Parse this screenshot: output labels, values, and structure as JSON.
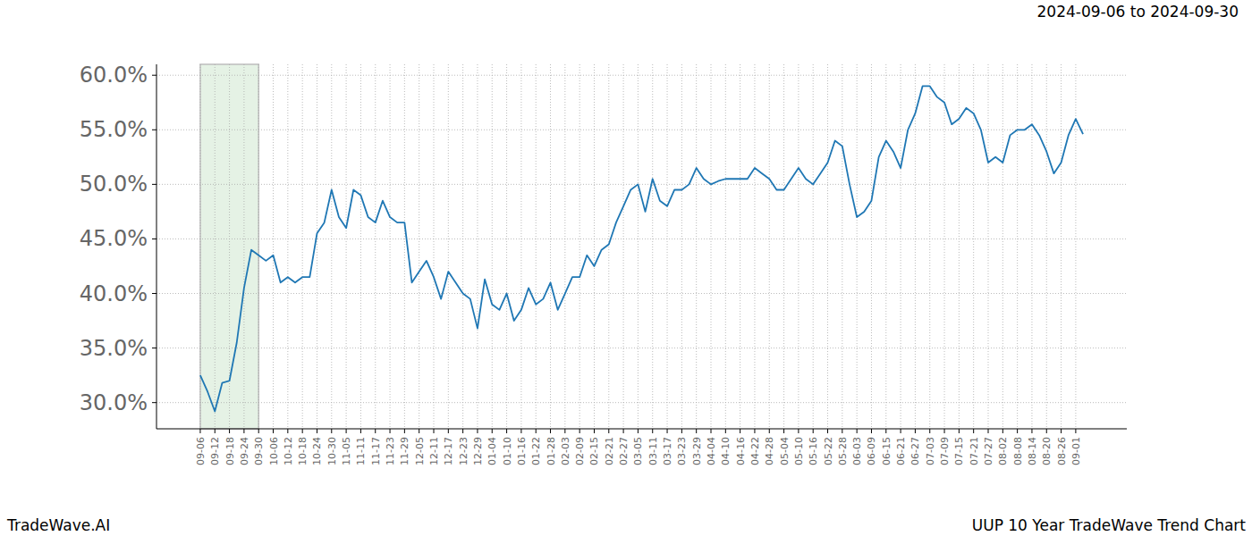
{
  "chart_data": {
    "type": "line",
    "title": "UUP 10 Year TradeWave Trend Chart",
    "subtitle": "2024-09-06 to 2024-09-30",
    "source": "TradeWave.AI",
    "highlight": [
      "09-06",
      "09-30"
    ],
    "categories": [
      "09-06",
      null,
      "09-12",
      null,
      "09-18",
      null,
      "09-24",
      null,
      "09-30",
      null,
      "10-06",
      null,
      "10-12",
      null,
      "10-18",
      null,
      "10-24",
      null,
      "10-30",
      null,
      "11-05",
      null,
      "11-11",
      null,
      "11-17",
      null,
      "11-23",
      null,
      "11-29",
      null,
      "12-05",
      null,
      "12-11",
      null,
      "12-17",
      null,
      "12-23",
      null,
      "12-29",
      null,
      "01-04",
      null,
      "01-10",
      null,
      "01-16",
      null,
      "01-22",
      null,
      "01-28",
      null,
      "02-03",
      null,
      "02-09",
      null,
      "02-15",
      null,
      "02-21",
      null,
      "02-27",
      null,
      "03-05",
      null,
      "03-11",
      null,
      "03-17",
      null,
      "03-23",
      null,
      "03-29",
      null,
      "04-04",
      null,
      "04-10",
      null,
      "04-16",
      null,
      "04-22",
      null,
      "04-28",
      null,
      "05-04",
      null,
      "05-10",
      null,
      "05-16",
      null,
      "05-22",
      null,
      "05-28",
      null,
      "06-03",
      null,
      "06-09",
      null,
      "06-15",
      null,
      "06-21",
      null,
      "06-27",
      null,
      "07-03",
      null,
      "07-09",
      null,
      "07-15",
      null,
      "07-21",
      null,
      "07-27",
      null,
      "08-02",
      null,
      "08-08",
      null,
      "08-14",
      null,
      "08-20",
      null,
      "08-26",
      null,
      "09-01",
      null
    ],
    "values": [
      32.5,
      31.0,
      29.2,
      31.8,
      32.0,
      35.5,
      40.5,
      44.0,
      43.5,
      43.0,
      43.5,
      41.0,
      41.5,
      41.0,
      41.5,
      41.5,
      45.5,
      46.5,
      49.5,
      47.0,
      46.0,
      49.5,
      49.0,
      47.0,
      46.5,
      48.5,
      47.0,
      46.5,
      46.5,
      41.0,
      42.0,
      43.0,
      41.5,
      39.5,
      42.0,
      41.0,
      40.0,
      39.5,
      36.8,
      41.3,
      39.0,
      38.5,
      40.0,
      37.5,
      38.5,
      40.5,
      39.0,
      39.5,
      41.0,
      38.5,
      40.0,
      41.5,
      41.5,
      43.5,
      42.5,
      44.0,
      44.5,
      46.5,
      48.0,
      49.5,
      50.0,
      47.5,
      50.5,
      48.5,
      48.0,
      49.5,
      49.5,
      50.0,
      51.5,
      50.5,
      50.0,
      50.3,
      50.5,
      50.5,
      50.5,
      50.5,
      51.5,
      51.0,
      50.5,
      49.5,
      49.5,
      50.5,
      51.5,
      50.5,
      50.0,
      51.0,
      52.0,
      54.0,
      53.5,
      50.0,
      47.0,
      47.5,
      48.5,
      52.5,
      54.0,
      53.0,
      51.5,
      55.0,
      56.5,
      59.0,
      59.0,
      58.0,
      57.5,
      55.5,
      56.0,
      57.0,
      56.5,
      55.0,
      52.0,
      52.5,
      52.0,
      54.5,
      55.0,
      55.0,
      55.5,
      54.5,
      53.0,
      51.0,
      52.0,
      54.5,
      56.0,
      54.6
    ],
    "color": "#1f77b4",
    "ylim": [
      27.6,
      61.0
    ],
    "yticks": [
      {
        "value": 30,
        "label": "30.0%"
      },
      {
        "value": 35,
        "label": "35.0%"
      },
      {
        "value": 40,
        "label": "40.0%"
      },
      {
        "value": 45,
        "label": "45.0%"
      },
      {
        "value": 50,
        "label": "50.0%"
      },
      {
        "value": 55,
        "label": "55.0%"
      },
      {
        "value": 60,
        "label": "60.0%"
      }
    ],
    "grid": true
  }
}
